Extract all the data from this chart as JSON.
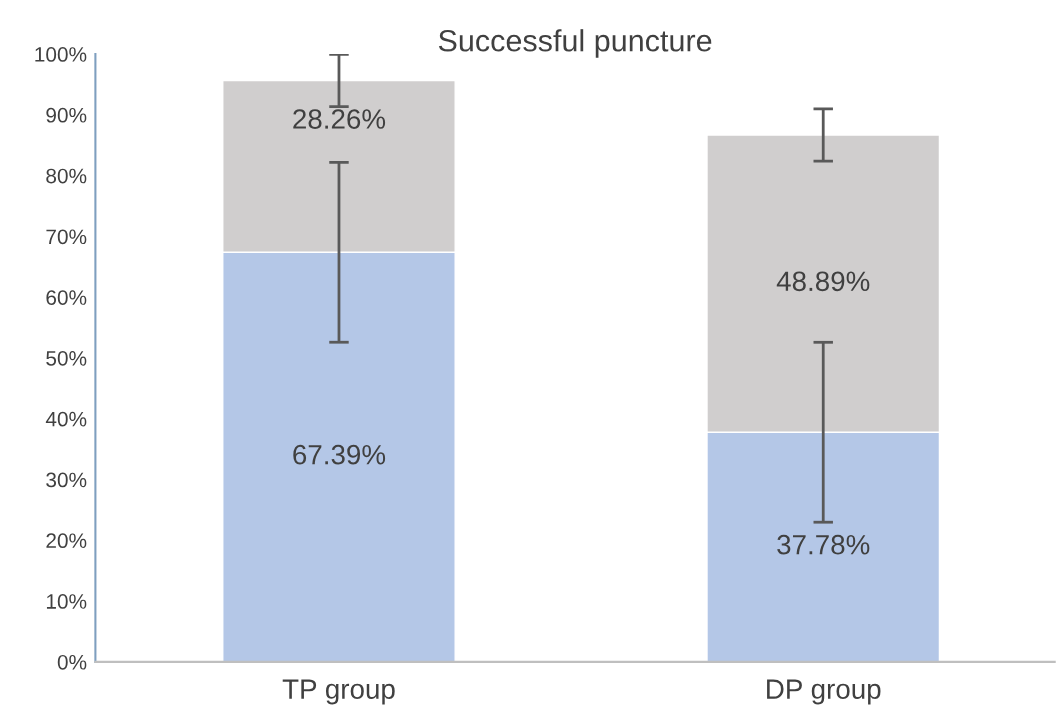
{
  "chart_data": {
    "type": "bar",
    "title": "Successful puncture",
    "stacked": true,
    "categories": [
      "TP group",
      "DP group"
    ],
    "series": [
      {
        "color": "#b4c7e7",
        "values": [
          67.39,
          37.78
        ],
        "errors": [
          14.8,
          14.8
        ],
        "value_labels": [
          "67.39%",
          "37.78%"
        ]
      },
      {
        "color": "#d0cece",
        "values": [
          28.26,
          48.89
        ],
        "errors": [
          4.3,
          4.3
        ],
        "value_labels": [
          "28.26%",
          "48.89%"
        ]
      }
    ],
    "ylim": [
      0,
      100
    ],
    "yticks": [
      {
        "value": 0,
        "label": "0%"
      },
      {
        "value": 10,
        "label": "10%"
      },
      {
        "value": 20,
        "label": "20%"
      },
      {
        "value": 30,
        "label": "30%"
      },
      {
        "value": 40,
        "label": "40%"
      },
      {
        "value": 50,
        "label": "50%"
      },
      {
        "value": 60,
        "label": "60%"
      },
      {
        "value": 70,
        "label": "70%"
      },
      {
        "value": 80,
        "label": "80%"
      },
      {
        "value": 90,
        "label": "90%"
      },
      {
        "value": 100,
        "label": "100%"
      }
    ],
    "grid": false
  }
}
